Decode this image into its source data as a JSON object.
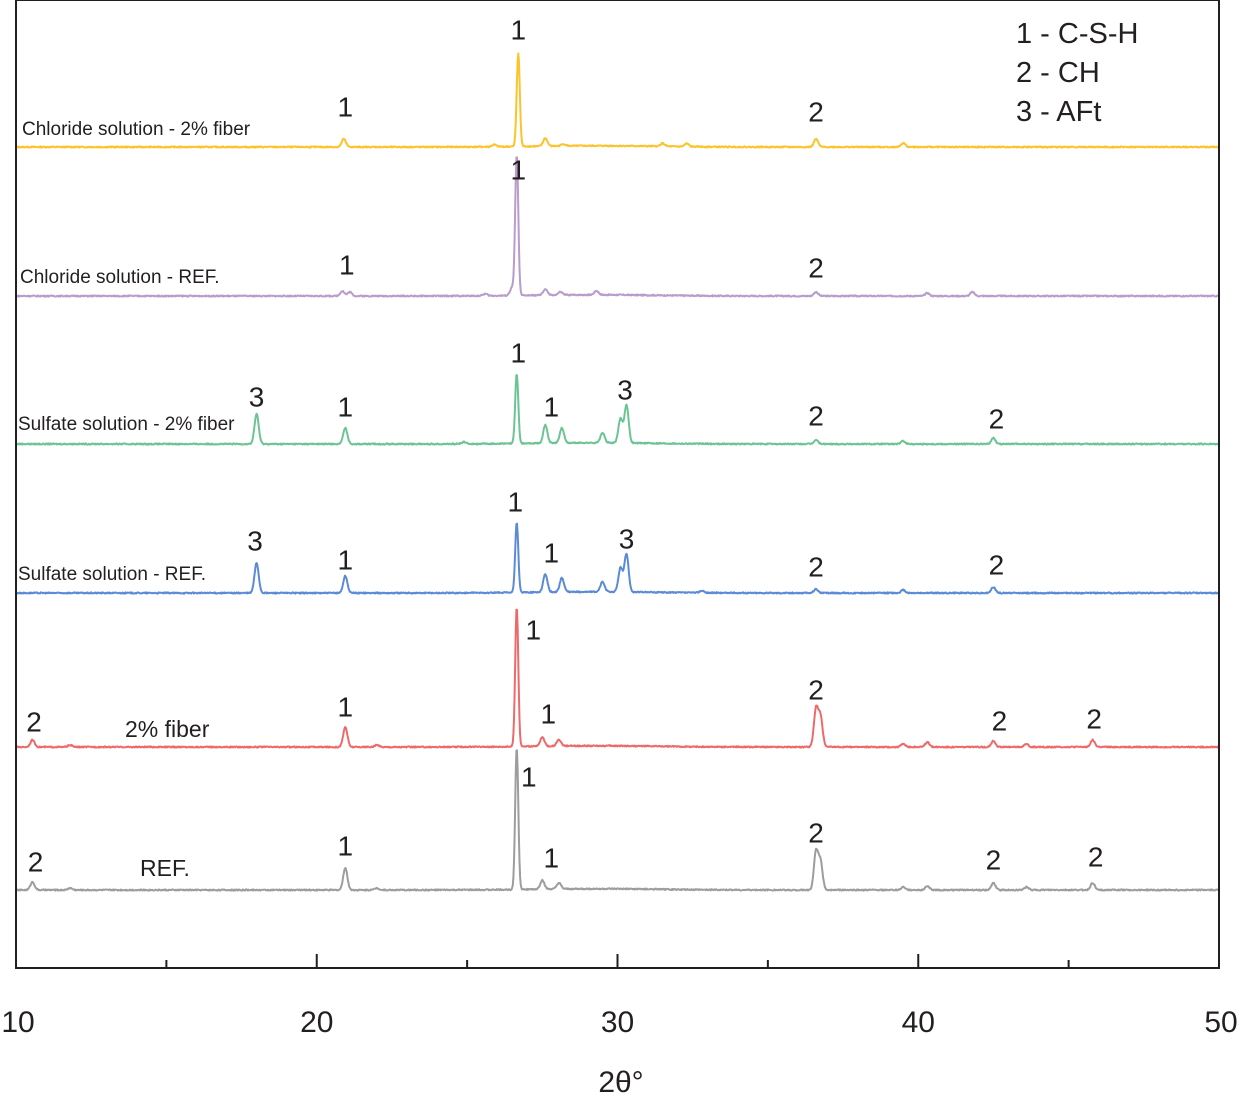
{
  "chart_data": {
    "type": "line",
    "xlabel": "2θ°",
    "ylabel": "",
    "xlim": [
      10,
      50
    ],
    "x_ticks": [
      10,
      20,
      30,
      40,
      50
    ],
    "x_minor_ticks": [
      15,
      25,
      35,
      45
    ],
    "grid": false,
    "y_ticks_shown": false,
    "legend": {
      "placement": "top-right",
      "entries": [
        "1 - C-S-H",
        "2 - CH",
        "3 - AFt"
      ]
    },
    "intensity_unit": "a.u. (relative, stacked)",
    "series": [
      {
        "name": "Chloride solution - 2% fiber",
        "color": "#fcc32a",
        "peaks": [
          [
            20.9,
            8
          ],
          [
            26.7,
            93
          ],
          [
            27.6,
            8
          ],
          [
            28.2,
            2
          ],
          [
            31.5,
            3
          ],
          [
            32.3,
            3
          ],
          [
            36.6,
            8
          ],
          [
            39.5,
            4
          ],
          [
            25.9,
            2
          ]
        ],
        "annotations": [
          [
            20.95,
            40,
            "1"
          ],
          [
            26.7,
            117,
            "1"
          ],
          [
            36.6,
            35,
            "2"
          ]
        ]
      },
      {
        "name": "Chloride solution - REF.",
        "color": "#b89ccc",
        "peaks": [
          [
            20.85,
            5
          ],
          [
            21.1,
            4
          ],
          [
            25.6,
            2
          ],
          [
            26.5,
            8
          ],
          [
            26.65,
            140
          ],
          [
            27.6,
            6
          ],
          [
            28.1,
            3
          ],
          [
            29.3,
            4
          ],
          [
            36.6,
            4
          ],
          [
            40.3,
            3
          ],
          [
            41.8,
            4
          ]
        ],
        "annotations": [
          [
            21.0,
            31,
            "1"
          ],
          [
            26.7,
            126,
            "1"
          ],
          [
            36.6,
            28,
            "2"
          ]
        ]
      },
      {
        "name": "Sulfate solution - 2% fiber",
        "color": "#6cc494",
        "peaks": [
          [
            18.0,
            30
          ],
          [
            20.95,
            16
          ],
          [
            24.9,
            2
          ],
          [
            26.65,
            70
          ],
          [
            27.6,
            18
          ],
          [
            28.15,
            15
          ],
          [
            29.5,
            10
          ],
          [
            30.1,
            24
          ],
          [
            30.3,
            38
          ],
          [
            36.6,
            4
          ],
          [
            39.5,
            3
          ],
          [
            42.5,
            6
          ]
        ],
        "annotations": [
          [
            18.0,
            47,
            "3"
          ],
          [
            20.95,
            37,
            "1"
          ],
          [
            26.7,
            91,
            "1"
          ],
          [
            27.8,
            37,
            "1"
          ],
          [
            30.25,
            54,
            "3"
          ],
          [
            36.6,
            28,
            "2"
          ],
          [
            42.6,
            25,
            "2"
          ]
        ]
      },
      {
        "name": "Sulfate solution - REF.",
        "color": "#5b8ad6",
        "peaks": [
          [
            18.0,
            30
          ],
          [
            20.95,
            17
          ],
          [
            26.65,
            70
          ],
          [
            27.6,
            18
          ],
          [
            28.15,
            14
          ],
          [
            29.5,
            10
          ],
          [
            30.1,
            24
          ],
          [
            30.3,
            38
          ],
          [
            32.8,
            2
          ],
          [
            36.6,
            4
          ],
          [
            39.5,
            3
          ],
          [
            42.5,
            6
          ]
        ],
        "annotations": [
          [
            17.95,
            52,
            "3"
          ],
          [
            20.95,
            33,
            "1"
          ],
          [
            26.6,
            91,
            "1"
          ],
          [
            27.8,
            40,
            "1"
          ],
          [
            30.3,
            54,
            "3"
          ],
          [
            36.6,
            26,
            "2"
          ],
          [
            42.6,
            28,
            "2"
          ]
        ]
      },
      {
        "name": "2% fiber",
        "color": "#ee6a6a",
        "peaks": [
          [
            10.55,
            7
          ],
          [
            11.8,
            2
          ],
          [
            20.95,
            20
          ],
          [
            22.0,
            2
          ],
          [
            26.65,
            140
          ],
          [
            27.5,
            9
          ],
          [
            28.05,
            6
          ],
          [
            36.6,
            38
          ],
          [
            36.75,
            30
          ],
          [
            39.5,
            3
          ],
          [
            40.3,
            5
          ],
          [
            42.5,
            6
          ],
          [
            43.6,
            3
          ],
          [
            45.8,
            7
          ]
        ],
        "annotations": [
          [
            10.6,
            25,
            "2"
          ],
          [
            20.95,
            40,
            "1"
          ],
          [
            27.2,
            117,
            "1"
          ],
          [
            27.7,
            33,
            "1"
          ],
          [
            36.6,
            57,
            "2"
          ],
          [
            42.7,
            26,
            "2"
          ],
          [
            45.85,
            28,
            "2"
          ]
        ]
      },
      {
        "name": "REF.",
        "color": "#9d9d9d",
        "peaks": [
          [
            10.55,
            8
          ],
          [
            11.8,
            2
          ],
          [
            20.95,
            22
          ],
          [
            22.0,
            2
          ],
          [
            26.65,
            142
          ],
          [
            27.5,
            9
          ],
          [
            28.05,
            6
          ],
          [
            36.6,
            38
          ],
          [
            36.75,
            28
          ],
          [
            39.5,
            3
          ],
          [
            40.3,
            4
          ],
          [
            42.5,
            7
          ],
          [
            43.6,
            3
          ],
          [
            45.8,
            7
          ]
        ],
        "annotations": [
          [
            10.65,
            28,
            "2"
          ],
          [
            20.95,
            44,
            "1"
          ],
          [
            27.05,
            113,
            "1"
          ],
          [
            27.8,
            32,
            "1"
          ],
          [
            36.6,
            57,
            "2"
          ],
          [
            42.5,
            30,
            "2"
          ],
          [
            45.9,
            33,
            "2"
          ]
        ]
      }
    ]
  }
}
